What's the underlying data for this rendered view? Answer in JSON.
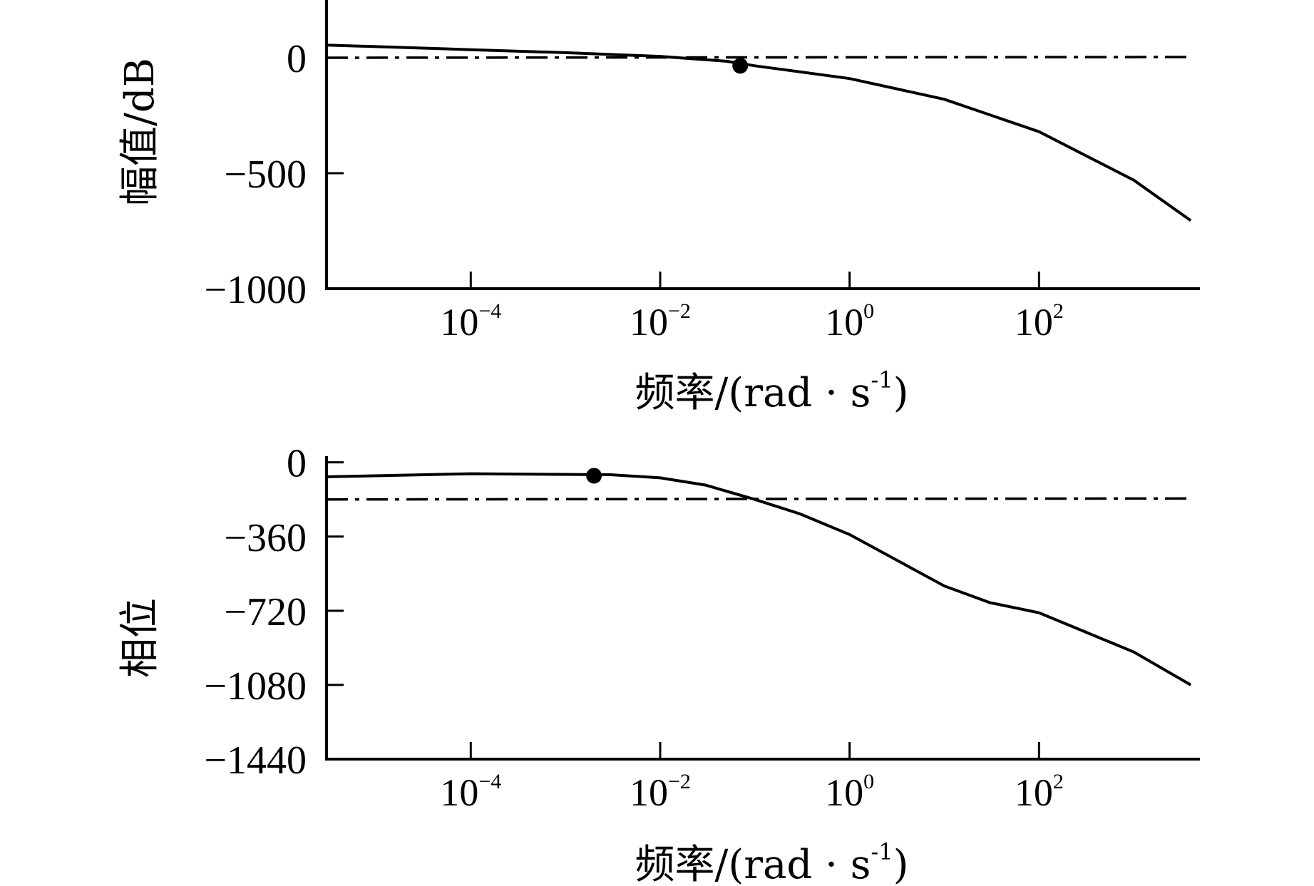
{
  "chart_data": [
    {
      "type": "line",
      "x_scale": "log",
      "xlim": [
        3e-06,
        5000
      ],
      "ylim": [
        -1000,
        250
      ],
      "xlabel": "频率/(rad·s⁻¹)",
      "ylabel": "幅值/dB",
      "xlabel_text": "频率/(rad · s",
      "xlabel_exp": "-1",
      "xlabel_close": ")",
      "ylabel_text": "幅值/dB",
      "x_ticks": [
        {
          "value": 0.0001,
          "base": "10",
          "exp": "−4"
        },
        {
          "value": 0.01,
          "base": "10",
          "exp": "−2"
        },
        {
          "value": 1,
          "base": "10",
          "exp": "0"
        },
        {
          "value": 100,
          "base": "10",
          "exp": "2"
        }
      ],
      "y_ticks": [
        {
          "value": 0,
          "label": "0"
        },
        {
          "value": -500,
          "label": "−500"
        },
        {
          "value": -1000,
          "label": "−1000"
        }
      ],
      "series": [
        {
          "style": "solid",
          "points": [
            [
              3e-06,
              55
            ],
            [
              0.0001,
              35
            ],
            [
              0.001,
              22
            ],
            [
              0.01,
              6
            ],
            [
              0.05,
              -15
            ],
            [
              0.1,
              -35
            ],
            [
              1,
              -90
            ],
            [
              10,
              -180
            ],
            [
              100,
              -320
            ],
            [
              1000,
              -530
            ],
            [
              4000,
              -705
            ]
          ]
        },
        {
          "style": "dash-dot",
          "points": [
            [
              3e-06,
              0
            ],
            [
              4000,
              3
            ]
          ]
        }
      ],
      "markers": [
        {
          "x": 0.07,
          "y": -35
        }
      ],
      "grid": false
    },
    {
      "type": "line",
      "x_scale": "log",
      "xlim": [
        3e-06,
        5000
      ],
      "ylim": [
        -1440,
        30
      ],
      "xlabel": "频率/(rad·s⁻¹)",
      "ylabel": "相位",
      "xlabel_text": "频率/(rad · s",
      "xlabel_exp": "-1",
      "xlabel_close": ")",
      "ylabel_text": "相位",
      "x_ticks": [
        {
          "value": 0.0001,
          "base": "10",
          "exp": "−4"
        },
        {
          "value": 0.01,
          "base": "10",
          "exp": "−2"
        },
        {
          "value": 1,
          "base": "10",
          "exp": "0"
        },
        {
          "value": 100,
          "base": "10",
          "exp": "2"
        }
      ],
      "y_ticks": [
        {
          "value": 0,
          "label": "0"
        },
        {
          "value": -360,
          "label": "−360"
        },
        {
          "value": -720,
          "label": "−720"
        },
        {
          "value": -1080,
          "label": "−1080"
        },
        {
          "value": -1440,
          "label": "−1440"
        }
      ],
      "series": [
        {
          "style": "solid",
          "points": [
            [
              3e-06,
              -70
            ],
            [
              0.0001,
              -55
            ],
            [
              0.003,
              -60
            ],
            [
              0.01,
              -75
            ],
            [
              0.03,
              -110
            ],
            [
              0.1,
              -180
            ],
            [
              0.3,
              -250
            ],
            [
              1,
              -350
            ],
            [
              10,
              -600
            ],
            [
              30,
              -680
            ],
            [
              100,
              -730
            ],
            [
              1000,
              -920
            ],
            [
              4000,
              -1080
            ]
          ]
        },
        {
          "style": "dash-dot",
          "points": [
            [
              3e-06,
              -180
            ],
            [
              4000,
              -175
            ]
          ]
        }
      ],
      "markers": [
        {
          "x": 0.002,
          "y": -65
        }
      ],
      "grid": false
    }
  ]
}
